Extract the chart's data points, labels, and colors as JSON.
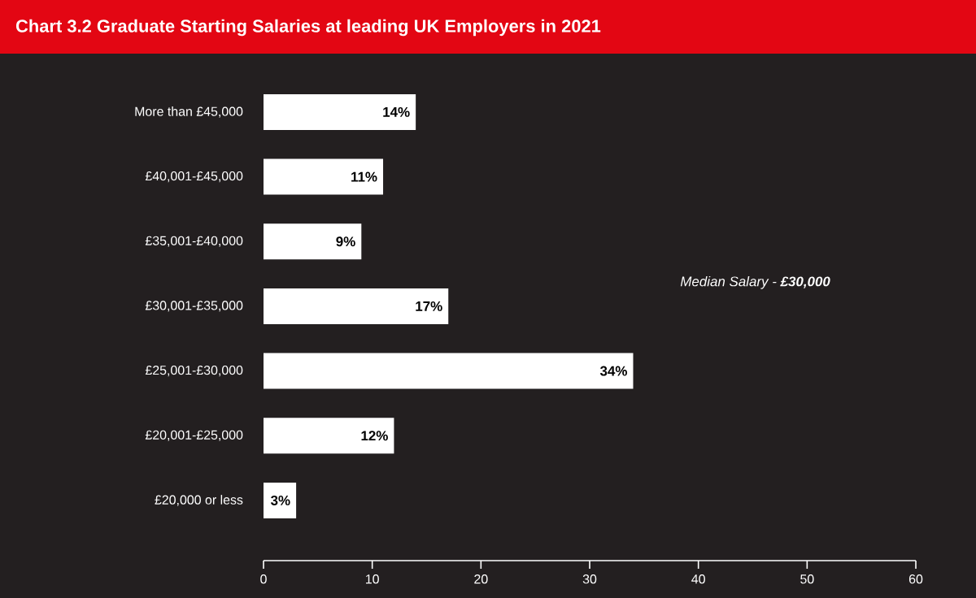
{
  "chart_data": {
    "type": "bar",
    "orientation": "horizontal",
    "title": "Chart 3.2 Graduate Starting Salaries at leading UK Employers in 2021",
    "categories": [
      "More than £45,000",
      "£40,001-£45,000",
      "£35,001-£40,000",
      "£30,001-£35,000",
      "£25,001-£30,000",
      "£20,001-£25,000",
      "£20,000 or less"
    ],
    "values": [
      14,
      11,
      9,
      17,
      34,
      12,
      3
    ],
    "value_labels": [
      "14%",
      "11%",
      "9%",
      "17%",
      "34%",
      "12%",
      "3%"
    ],
    "color": "#ffffff",
    "xlim": [
      0,
      60
    ],
    "xticks": [
      0,
      10,
      20,
      30,
      40,
      50,
      60
    ],
    "annotations": [
      "Median Salary - **£30,000**"
    ]
  }
}
